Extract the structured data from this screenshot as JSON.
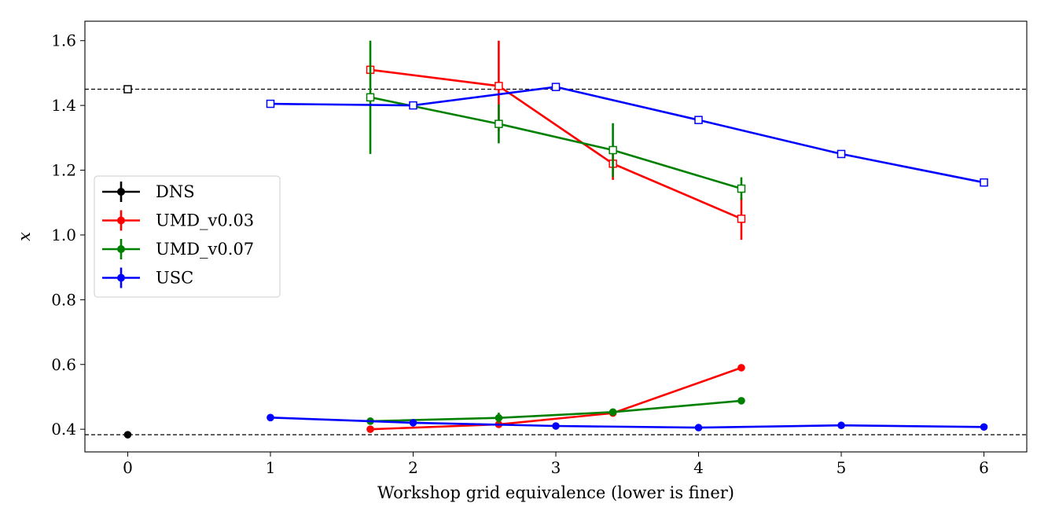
{
  "chart_data": {
    "type": "line",
    "xlabel": "Workshop grid equivalence (lower is finer)",
    "ylabel": "x",
    "xlim": [
      -0.3,
      6.3
    ],
    "ylim": [
      0.33,
      1.66
    ],
    "xticks": [
      0,
      1,
      2,
      3,
      4,
      5,
      6
    ],
    "xtick_labels": [
      "0",
      "1",
      "2",
      "3",
      "4",
      "5",
      "6"
    ],
    "yticks": [
      0.4,
      0.6,
      0.8,
      1.0,
      1.2,
      1.4,
      1.6
    ],
    "ytick_labels": [
      "0.4",
      "0.6",
      "0.8",
      "1.0",
      "1.2",
      "1.4",
      "1.6"
    ],
    "grid": false,
    "legend_position": "center-left",
    "reference_lines": [
      {
        "y": 1.45,
        "style": "dashed",
        "color": "#000000"
      },
      {
        "y": 0.383,
        "style": "dashed",
        "color": "#000000"
      }
    ],
    "series": [
      {
        "name": "DNS",
        "color": "#000000",
        "upper": [
          {
            "x": 0,
            "y": 1.45,
            "err": 0
          }
        ],
        "lower": [
          {
            "x": 0,
            "y": 0.383,
            "err": 0
          }
        ]
      },
      {
        "name": "UMD_v0.03",
        "color": "#ff0000",
        "upper": [
          {
            "x": 1.7,
            "y": 1.51,
            "err": 0
          },
          {
            "x": 2.6,
            "y": 1.46,
            "err": 0.14
          },
          {
            "x": 3.4,
            "y": 1.22,
            "err": 0.05
          },
          {
            "x": 4.3,
            "y": 1.05,
            "err": 0.065
          }
        ],
        "lower": [
          {
            "x": 1.7,
            "y": 0.4,
            "err": 0
          },
          {
            "x": 2.6,
            "y": 0.415,
            "err": 0
          },
          {
            "x": 3.4,
            "y": 0.45,
            "err": 0
          },
          {
            "x": 4.3,
            "y": 0.59,
            "err": 0
          }
        ]
      },
      {
        "name": "UMD_v0.07",
        "color": "#008000",
        "upper": [
          {
            "x": 1.7,
            "y": 1.425,
            "err": 0.175
          },
          {
            "x": 2.6,
            "y": 1.343,
            "err": 0.06
          },
          {
            "x": 3.4,
            "y": 1.262,
            "err": 0.083
          },
          {
            "x": 4.3,
            "y": 1.143,
            "err": 0.035
          }
        ],
        "lower": [
          {
            "x": 1.7,
            "y": 0.425,
            "err": 0
          },
          {
            "x": 2.6,
            "y": 0.435,
            "err": 0.016
          },
          {
            "x": 3.4,
            "y": 0.453,
            "err": 0.01
          },
          {
            "x": 4.3,
            "y": 0.488,
            "err": 0
          }
        ]
      },
      {
        "name": "USC",
        "color": "#0000ff",
        "upper": [
          {
            "x": 1,
            "y": 1.405,
            "err": 0
          },
          {
            "x": 2,
            "y": 1.4,
            "err": 0
          },
          {
            "x": 3,
            "y": 1.457,
            "err": 0
          },
          {
            "x": 4,
            "y": 1.355,
            "err": 0
          },
          {
            "x": 5,
            "y": 1.25,
            "err": 0
          },
          {
            "x": 6,
            "y": 1.162,
            "err": 0
          }
        ],
        "lower": [
          {
            "x": 1,
            "y": 0.436,
            "err": 0
          },
          {
            "x": 2,
            "y": 0.42,
            "err": 0
          },
          {
            "x": 3,
            "y": 0.41,
            "err": 0
          },
          {
            "x": 4,
            "y": 0.405,
            "err": 0
          },
          {
            "x": 5,
            "y": 0.412,
            "err": 0
          },
          {
            "x": 6,
            "y": 0.407,
            "err": 0
          }
        ]
      }
    ]
  }
}
